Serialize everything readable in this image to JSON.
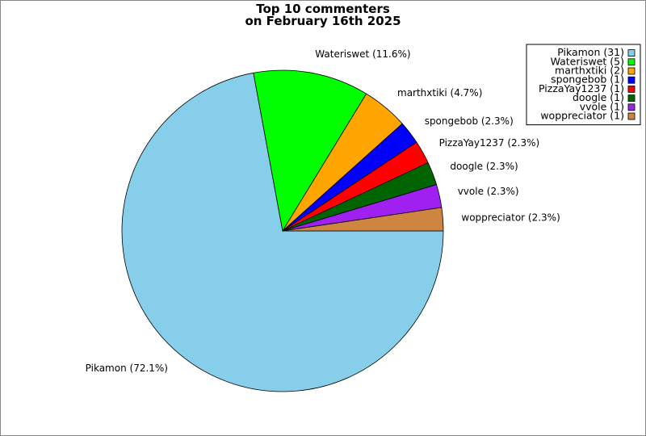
{
  "chart_data": {
    "type": "pie",
    "title": [
      "Top 10 commenters",
      "on February 16th 2025"
    ],
    "slices": [
      {
        "name": "Pikamon",
        "count": 31,
        "percent": 72.1,
        "color": "#87ceeb"
      },
      {
        "name": "Wateriswet",
        "count": 5,
        "percent": 11.6,
        "color": "#00ff00"
      },
      {
        "name": "marthxtiki",
        "count": 2,
        "percent": 4.7,
        "color": "#ffa500"
      },
      {
        "name": "spongebob",
        "count": 1,
        "percent": 2.3,
        "color": "#0000ff"
      },
      {
        "name": "PizzaYay1237",
        "count": 1,
        "percent": 2.3,
        "color": "#ff0000"
      },
      {
        "name": "doogle",
        "count": 1,
        "percent": 2.3,
        "color": "#006400"
      },
      {
        "name": "vvole",
        "count": 1,
        "percent": 2.3,
        "color": "#a020f0"
      },
      {
        "name": "woppreciator",
        "count": 1,
        "percent": 2.3,
        "color": "#cd853f"
      }
    ],
    "slice_labels": [
      "Pikamon (72.1%)",
      "Wateriswet (11.6%)",
      "marthxtiki (4.7%)",
      "spongebob (2.3%)",
      "PizzaYay1237 (2.3%)",
      "doogle (2.3%)",
      "vvole (2.3%)",
      "woppreciator (2.3%)"
    ],
    "legend_entries": [
      "Pikamon (31)",
      "Wateriswet (5)",
      "marthxtiki (2)",
      "spongebob (1)",
      "PizzaYay1237 (1)",
      "doogle (1)",
      "vvole (1)",
      "woppreciator (1)"
    ],
    "legend_position": "top-right",
    "direction": "clockwise from 3 o'clock"
  }
}
